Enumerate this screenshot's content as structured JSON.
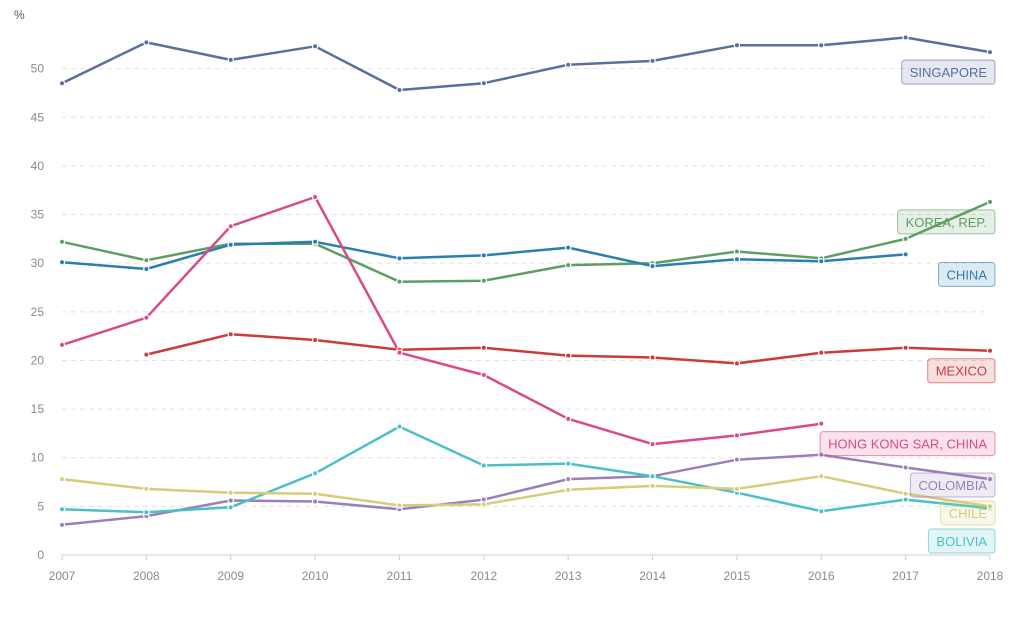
{
  "chart_data": {
    "type": "line",
    "unit_label": "%",
    "xlabel": "",
    "ylabel": "",
    "x": [
      2007,
      2008,
      2009,
      2010,
      2011,
      2012,
      2013,
      2014,
      2015,
      2016,
      2017,
      2018
    ],
    "ylim": [
      0,
      55
    ],
    "yticks": [
      0,
      5,
      10,
      15,
      20,
      25,
      30,
      35,
      40,
      45,
      50
    ],
    "grid": "horizontal-dashed",
    "legend": "direct-labels-right",
    "series": [
      {
        "name": "SINGAPORE",
        "color": "#5b6f9c",
        "values": [
          48.5,
          52.7,
          50.9,
          52.3,
          47.8,
          48.5,
          50.4,
          50.8,
          52.4,
          52.4,
          53.2,
          51.7
        ]
      },
      {
        "name": "KOREA, REP.",
        "color": "#5f9e63",
        "values": [
          32.2,
          30.3,
          32.0,
          32.0,
          28.1,
          28.2,
          29.8,
          30.0,
          31.2,
          30.5,
          32.5,
          36.3
        ]
      },
      {
        "name": "CHINA",
        "color": "#2b7fb0",
        "values": [
          30.1,
          29.4,
          31.9,
          32.2,
          30.5,
          30.8,
          31.6,
          29.7,
          30.4,
          30.2,
          30.9,
          null
        ]
      },
      {
        "name": "MEXICO",
        "color": "#cc3b3b",
        "values": [
          null,
          20.6,
          22.7,
          22.1,
          21.1,
          21.3,
          20.5,
          20.3,
          19.7,
          20.8,
          21.3,
          21.0
        ]
      },
      {
        "name": "HONG KONG SAR, CHINA",
        "color": "#d94a8a",
        "values": [
          21.6,
          24.4,
          33.8,
          36.8,
          20.8,
          18.5,
          14.0,
          11.4,
          12.3,
          13.5,
          null,
          null
        ]
      },
      {
        "name": "COLOMBIA",
        "color": "#9a80ba",
        "values": [
          3.1,
          4.0,
          5.6,
          5.5,
          4.7,
          5.7,
          7.8,
          8.1,
          9.8,
          10.3,
          9.0,
          7.8
        ]
      },
      {
        "name": "BOLIVIA",
        "color": "#4cc0c6",
        "values": [
          4.7,
          4.4,
          4.9,
          8.4,
          13.2,
          9.2,
          9.4,
          8.1,
          6.4,
          4.5,
          5.7,
          4.8
        ]
      },
      {
        "name": "CHILE",
        "color": "#d6cc7a",
        "values": [
          7.8,
          6.8,
          6.4,
          6.3,
          5.1,
          5.2,
          6.7,
          7.1,
          6.8,
          8.1,
          6.3,
          5.0
        ]
      }
    ]
  }
}
